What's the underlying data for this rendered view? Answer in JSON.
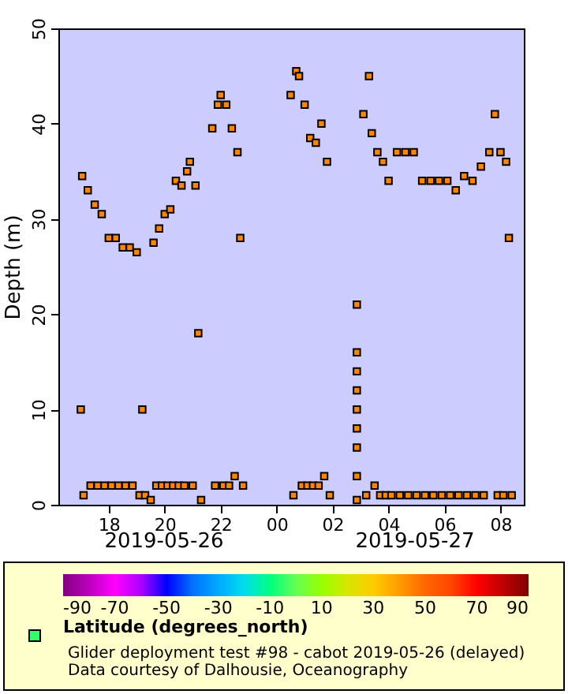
{
  "chart_data": {
    "type": "scatter",
    "ylabel": "Depth (m)",
    "clabel": "Latitude (degrees_north)",
    "marker": "square",
    "grid": false,
    "xlim": [
      "2019-05-26T16:12",
      "2019-05-27T08:50"
    ],
    "xticks": [
      {
        "value": "2019-05-26T18:00",
        "label": "18"
      },
      {
        "value": "2019-05-26T20:00",
        "label": "20"
      },
      {
        "value": "2019-05-26T22:00",
        "label": "22"
      },
      {
        "value": "2019-05-27T00:00",
        "label": "00"
      },
      {
        "value": "2019-05-27T02:00",
        "label": "02"
      },
      {
        "value": "2019-05-27T04:00",
        "label": "04"
      },
      {
        "value": "2019-05-27T06:00",
        "label": "06"
      },
      {
        "value": "2019-05-27T08:00",
        "label": "08"
      }
    ],
    "ylim": [
      0,
      50
    ],
    "yticks": [
      0,
      10,
      20,
      30,
      40,
      50
    ],
    "clim": [
      -90,
      90
    ],
    "cticks": [
      -90,
      -70,
      -50,
      -30,
      -10,
      10,
      30,
      50,
      70,
      90
    ],
    "annotations": [
      "2019-05-26",
      "2019-05-27",
      "Glider deployment test #98 - cabot 2019-05-26 (delayed)",
      "Data courtesy of Dalhousie, Oceanography"
    ],
    "x": [
      "2019-05-26T17:00",
      "2019-05-26T17:03",
      "2019-05-26T17:06",
      "2019-05-26T17:15",
      "2019-05-26T17:21",
      "2019-05-26T17:30",
      "2019-05-26T17:36",
      "2019-05-26T17:45",
      "2019-05-26T17:51",
      "2019-05-26T18:00",
      "2019-05-26T18:06",
      "2019-05-26T18:15",
      "2019-05-26T18:21",
      "2019-05-26T18:30",
      "2019-05-26T18:36",
      "2019-05-26T18:45",
      "2019-05-26T18:51",
      "2019-05-26T19:00",
      "2019-05-26T19:06",
      "2019-05-26T19:12",
      "2019-05-26T19:18",
      "2019-05-26T19:30",
      "2019-05-26T19:36",
      "2019-05-26T19:42",
      "2019-05-26T19:48",
      "2019-05-26T19:54",
      "2019-05-26T20:00",
      "2019-05-26T20:06",
      "2019-05-26T20:12",
      "2019-05-26T20:18",
      "2019-05-26T20:24",
      "2019-05-26T20:30",
      "2019-05-26T20:36",
      "2019-05-26T20:42",
      "2019-05-26T20:48",
      "2019-05-26T20:54",
      "2019-05-26T21:00",
      "2019-05-26T21:06",
      "2019-05-26T21:12",
      "2019-05-26T21:18",
      "2019-05-26T21:42",
      "2019-05-26T21:48",
      "2019-05-26T21:54",
      "2019-05-26T22:00",
      "2019-05-26T22:06",
      "2019-05-26T22:12",
      "2019-05-26T22:18",
      "2019-05-26T22:24",
      "2019-05-26T22:30",
      "2019-05-26T22:36",
      "2019-05-26T22:42",
      "2019-05-26T22:48",
      "2019-05-27T00:30",
      "2019-05-27T00:36",
      "2019-05-27T00:42",
      "2019-05-27T00:48",
      "2019-05-27T00:54",
      "2019-05-27T01:00",
      "2019-05-27T01:06",
      "2019-05-27T01:12",
      "2019-05-27T01:18",
      "2019-05-27T01:24",
      "2019-05-27T01:30",
      "2019-05-27T01:36",
      "2019-05-27T01:42",
      "2019-05-27T01:48",
      "2019-05-27T01:54",
      "2019-05-27T02:52",
      "2019-05-27T02:52",
      "2019-05-27T02:52",
      "2019-05-27T02:52",
      "2019-05-27T02:52",
      "2019-05-27T02:52",
      "2019-05-27T02:52",
      "2019-05-27T02:52",
      "2019-05-27T02:52",
      "2019-05-27T03:06",
      "2019-05-27T03:12",
      "2019-05-27T03:18",
      "2019-05-27T03:24",
      "2019-05-27T03:30",
      "2019-05-27T03:36",
      "2019-05-27T03:42",
      "2019-05-27T03:48",
      "2019-05-27T03:54",
      "2019-05-27T04:00",
      "2019-05-27T04:06",
      "2019-05-27T04:18",
      "2019-05-27T04:24",
      "2019-05-27T04:36",
      "2019-05-27T04:42",
      "2019-05-27T04:54",
      "2019-05-27T05:00",
      "2019-05-27T05:12",
      "2019-05-27T05:18",
      "2019-05-27T05:30",
      "2019-05-27T05:36",
      "2019-05-27T05:48",
      "2019-05-27T05:54",
      "2019-05-27T06:06",
      "2019-05-27T06:12",
      "2019-05-27T06:24",
      "2019-05-27T06:30",
      "2019-05-27T06:42",
      "2019-05-27T06:48",
      "2019-05-27T07:00",
      "2019-05-27T07:06",
      "2019-05-27T07:18",
      "2019-05-27T07:24",
      "2019-05-27T07:36",
      "2019-05-27T07:48",
      "2019-05-27T07:54",
      "2019-05-27T08:00",
      "2019-05-27T08:06",
      "2019-05-27T08:12",
      "2019-05-27T08:18",
      "2019-05-27T08:24"
    ],
    "values": [
      10,
      34.5,
      1,
      33,
      2,
      31.5,
      2,
      30.5,
      2,
      28,
      2,
      28,
      2,
      27,
      2,
      27,
      2,
      26.5,
      1,
      10,
      1,
      0.5,
      27.5,
      2,
      29,
      2,
      30.5,
      2,
      31,
      2,
      34,
      2,
      33.5,
      2,
      35,
      36,
      2,
      33.5,
      18,
      0.5,
      39.5,
      2,
      42,
      43,
      2,
      42,
      2,
      39.5,
      3,
      37,
      28,
      2,
      43,
      1,
      45.5,
      45,
      2,
      42,
      2,
      38.5,
      2,
      38,
      2,
      40,
      3,
      36,
      1,
      21,
      16,
      14,
      12,
      10,
      8,
      6,
      3,
      0.5,
      41,
      1,
      45,
      39,
      2,
      37,
      1,
      36,
      1,
      34,
      1,
      37,
      1,
      37,
      1,
      37,
      1,
      34,
      1,
      34,
      1,
      34,
      1,
      34,
      1,
      33,
      1,
      34.5,
      1,
      34,
      1,
      35.5,
      1,
      37,
      41,
      1,
      37,
      1,
      36,
      28,
      1
    ],
    "cvalues": [
      44.6,
      44.6,
      44.6,
      44.6,
      44.6,
      44.6,
      44.6,
      44.6,
      44.6,
      44.6,
      44.6,
      44.6,
      44.6,
      44.6,
      44.6,
      44.6,
      44.6,
      44.6,
      44.6,
      44.6,
      44.6,
      44.6,
      44.6,
      44.6,
      44.6,
      44.6,
      44.6,
      44.6,
      44.6,
      44.6,
      44.6,
      44.6,
      44.6,
      44.6,
      44.6,
      44.6,
      44.6,
      44.6,
      44.6,
      44.6,
      44.6,
      44.6,
      44.6,
      44.6,
      44.6,
      44.6,
      44.6,
      44.6,
      44.6,
      44.6,
      44.6,
      44.6,
      44.6,
      44.6,
      44.6,
      44.6,
      44.6,
      44.6,
      44.6,
      44.6,
      44.6,
      44.6,
      44.6,
      44.6,
      44.6,
      44.6,
      44.6,
      44.6,
      44.6,
      44.6,
      44.6,
      44.6,
      44.6,
      44.6,
      44.6,
      44.6,
      44.6,
      44.6,
      44.6,
      44.6,
      44.6,
      44.6,
      44.6,
      44.6,
      44.6,
      44.6,
      44.6,
      44.6,
      44.6,
      44.6,
      44.6,
      44.6,
      44.6,
      44.6,
      44.6,
      44.6,
      44.6,
      44.6,
      44.6,
      44.6,
      44.6,
      44.6,
      44.6,
      44.6,
      44.6,
      44.6,
      44.6,
      44.6,
      44.6,
      44.6,
      44.6,
      44.6,
      44.6,
      44.6,
      44.6,
      44.6,
      44.6
    ]
  }
}
